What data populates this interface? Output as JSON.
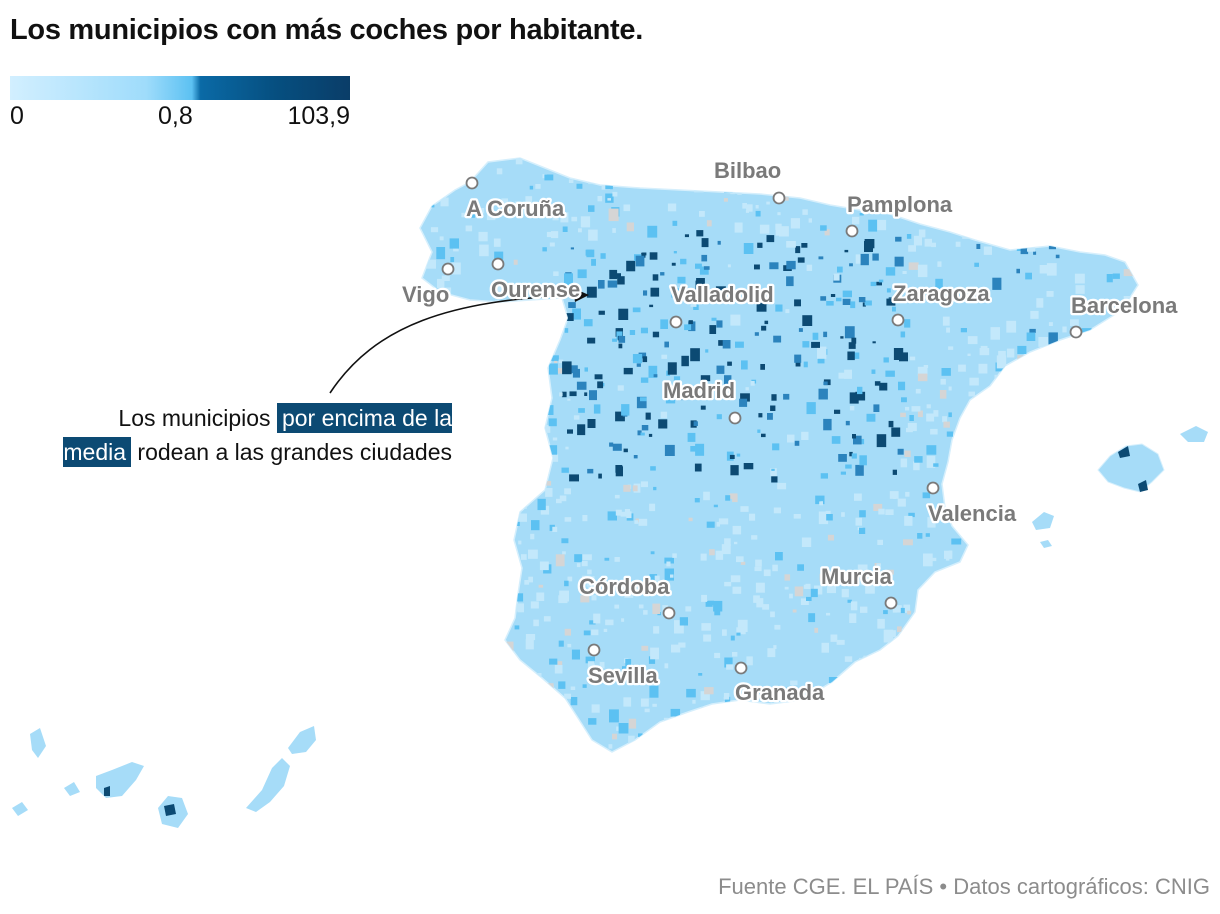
{
  "title": "Los municipios con más coches por habitante",
  "title_punct": ".",
  "legend": {
    "min": "0",
    "mid": "0,8",
    "max": "103,9"
  },
  "annotation": {
    "text_before": "Los municipios ",
    "highlight": "por encima de la media",
    "text_after": " rodean a las grandes ciudades"
  },
  "cities": [
    {
      "name": "A Coruña"
    },
    {
      "name": "Bilbao"
    },
    {
      "name": "Pamplona"
    },
    {
      "name": "Vigo"
    },
    {
      "name": "Ourense"
    },
    {
      "name": "Valladolid"
    },
    {
      "name": "Zaragoza"
    },
    {
      "name": "Barcelona"
    },
    {
      "name": "Madrid"
    },
    {
      "name": "Valencia"
    },
    {
      "name": "Córdoba"
    },
    {
      "name": "Murcia"
    },
    {
      "name": "Sevilla"
    },
    {
      "name": "Granada"
    }
  ],
  "source": "Fuente CGE. EL PAÍS  • Datos cartográficos: CNIG",
  "colors": {
    "low": "#a6dcf8",
    "mid": "#5cc1f2",
    "high": "#0c4a73",
    "nodata": "#d5d5d5",
    "label": "#7a7a7a",
    "source": "#8c8c8c"
  }
}
